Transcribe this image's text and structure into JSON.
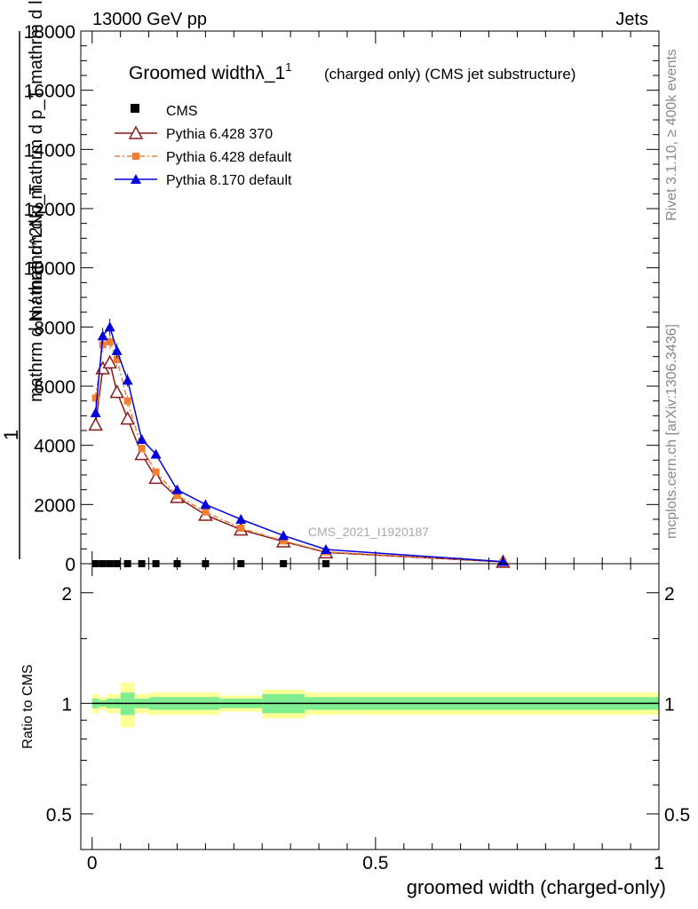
{
  "header": {
    "left": "13000 GeV pp",
    "right": "Jets"
  },
  "side": {
    "rivet": "Rivet 3.1.10, ≥ 400k events",
    "mcplots": "mcplots.cern.ch [arXiv:1306.3436]"
  },
  "chart_data": [
    {
      "type": "line",
      "title": "Groomed widthλ_1",
      "title_superscript": "1",
      "subtitle": "(charged only) (CMS jet substructure)",
      "watermark": "CMS_2021_I1920187",
      "ylabel_numerator": "1",
      "ylabel_denominator": "mathrm d N / mathrm d p_T",
      "ylabel_overlay": "mathrm d^2N / mathrm d p_T mathrm d lambda",
      "xlim": [
        -0.02,
        1.0
      ],
      "ylim": [
        0,
        18000
      ],
      "yticks": [
        0,
        2000,
        4000,
        6000,
        8000,
        10000,
        12000,
        14000,
        16000,
        18000
      ],
      "ytick_labels": [
        "0",
        "2000",
        "4000",
        "6000",
        "8000",
        "10000",
        "12000",
        "14000",
        "16000",
        "18000"
      ],
      "legend": [
        {
          "name": "CMS",
          "color": "#000000",
          "marker": "square"
        },
        {
          "name": "Pythia 6.428 370",
          "color": "#8b1a1a",
          "marker": "open-triangle"
        },
        {
          "name": "Pythia 6.428 default",
          "color": "#f08030",
          "marker": "square-dashed"
        },
        {
          "name": "Pythia 8.170 default",
          "color": "#0000dd",
          "marker": "triangle"
        }
      ],
      "x": [
        0.0061,
        0.0187,
        0.0312,
        0.0437,
        0.0625,
        0.0875,
        0.1125,
        0.15,
        0.2,
        0.2625,
        0.3375,
        0.4125,
        0.725
      ],
      "series": [
        {
          "name": "CMS",
          "values": [
            0,
            0,
            0,
            0,
            0,
            0,
            0,
            0,
            0,
            0,
            0,
            0,
            0
          ]
        },
        {
          "name": "Pythia 6.428 370",
          "values": [
            4700,
            6600,
            6800,
            5800,
            4900,
            3700,
            2900,
            2250,
            1650,
            1150,
            750,
            380,
            60
          ]
        },
        {
          "name": "Pythia 6.428 default",
          "values": [
            5600,
            7400,
            7500,
            6900,
            5500,
            3900,
            3100,
            2300,
            1750,
            1200,
            770,
            400,
            70
          ]
        },
        {
          "name": "Pythia 8.170 default",
          "values": [
            5100,
            7700,
            8000,
            7200,
            6200,
            4200,
            3700,
            2500,
            2000,
            1500,
            950,
            480,
            70
          ]
        }
      ]
    },
    {
      "type": "line",
      "ylabel": "Ratio to CMS",
      "xlabel": "groomed width (charged-only)",
      "ylim": [
        0.4,
        2.4
      ],
      "yscale": "log",
      "yticks": [
        0.5,
        1,
        2
      ],
      "ytick_labels": [
        "0.5",
        "1",
        "2"
      ],
      "xticks": [
        0,
        0.5,
        1
      ],
      "xtick_labels": [
        "0",
        "0.5",
        "1"
      ],
      "bin_edges": [
        0,
        0.0125,
        0.025,
        0.0375,
        0.05,
        0.075,
        0.1,
        0.125,
        0.175,
        0.225,
        0.3,
        0.375,
        0.45,
        1.0
      ],
      "band_inner": [
        0.03,
        0.02,
        0.03,
        0.03,
        0.07,
        0.03,
        0.04,
        0.04,
        0.04,
        0.03,
        0.06,
        0.04,
        0.04
      ],
      "band_outer": [
        0.06,
        0.04,
        0.06,
        0.06,
        0.14,
        0.06,
        0.07,
        0.07,
        0.07,
        0.05,
        0.09,
        0.07,
        0.07
      ],
      "colors": {
        "inner": "#80ee90",
        "outer": "#ffff99",
        "line": "#000000"
      }
    }
  ]
}
